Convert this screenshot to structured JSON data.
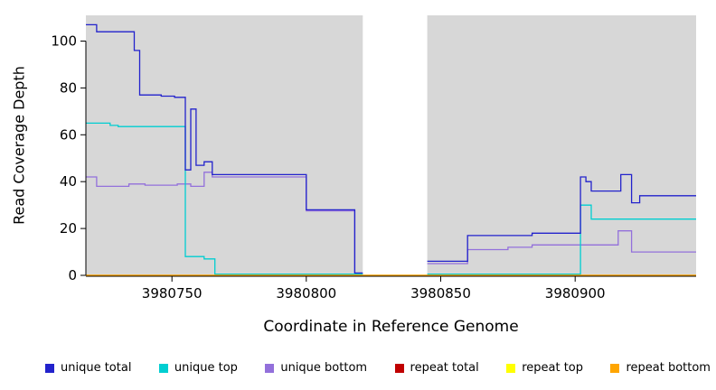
{
  "chart_data": {
    "type": "line",
    "title": "",
    "xlabel": "Coordinate in Reference Genome",
    "ylabel": "Read Coverage Depth",
    "xlim": [
      3980718,
      3980945
    ],
    "ylim": [
      0,
      111
    ],
    "x_ticks": [
      3980750,
      3980800,
      3980850,
      3980900
    ],
    "y_ticks": [
      0,
      20,
      40,
      60,
      80,
      100
    ],
    "grid": false,
    "legend_position": "bottom",
    "plot_background": "#ffffff",
    "coverage_region_color": "#d7d7d7",
    "coverage_regions": [
      [
        3980718,
        3980821
      ],
      [
        3980845,
        3980945
      ]
    ],
    "gap_region": [
      3980821,
      3980845
    ],
    "series": [
      {
        "name": "unique total",
        "color": "#2222cc",
        "z": 3,
        "points": [
          [
            3980718,
            107
          ],
          [
            3980722,
            104
          ],
          [
            3980736,
            96
          ],
          [
            3980738,
            77
          ],
          [
            3980746,
            76.5
          ],
          [
            3980751,
            76
          ],
          [
            3980755,
            45
          ],
          [
            3980757,
            71
          ],
          [
            3980759,
            47
          ],
          [
            3980762,
            48.5
          ],
          [
            3980765,
            43
          ],
          [
            3980800,
            28
          ],
          [
            3980818,
            1
          ],
          [
            3980821,
            null
          ],
          [
            3980845,
            6
          ],
          [
            3980860,
            17
          ],
          [
            3980884,
            18
          ],
          [
            3980902,
            42
          ],
          [
            3980904,
            40
          ],
          [
            3980906,
            36
          ],
          [
            3980917,
            43
          ],
          [
            3980921,
            31
          ],
          [
            3980924,
            34
          ],
          [
            3980945,
            34
          ]
        ]
      },
      {
        "name": "unique top",
        "color": "#00ced1",
        "z": 2,
        "points": [
          [
            3980718,
            65
          ],
          [
            3980727,
            64
          ],
          [
            3980730,
            63.5
          ],
          [
            3980755,
            8
          ],
          [
            3980762,
            7
          ],
          [
            3980766,
            0.5
          ],
          [
            3980821,
            null
          ],
          [
            3980845,
            0.5
          ],
          [
            3980902,
            30
          ],
          [
            3980906,
            24
          ],
          [
            3980945,
            24
          ]
        ]
      },
      {
        "name": "unique bottom",
        "color": "#9370db",
        "z": 1,
        "points": [
          [
            3980718,
            42
          ],
          [
            3980722,
            38
          ],
          [
            3980734,
            39
          ],
          [
            3980740,
            38.5
          ],
          [
            3980752,
            39
          ],
          [
            3980757,
            38
          ],
          [
            3980762,
            44
          ],
          [
            3980765,
            42
          ],
          [
            3980800,
            27.5
          ],
          [
            3980818,
            0.5
          ],
          [
            3980821,
            null
          ],
          [
            3980845,
            5
          ],
          [
            3980860,
            11
          ],
          [
            3980875,
            12
          ],
          [
            3980884,
            13
          ],
          [
            3980916,
            19
          ],
          [
            3980921,
            10
          ],
          [
            3980945,
            10
          ]
        ]
      },
      {
        "name": "repeat total",
        "color": "#c00000",
        "z": 4,
        "points": [
          [
            3980718,
            0
          ],
          [
            3980945,
            0
          ]
        ]
      },
      {
        "name": "repeat top",
        "color": "#ffff00",
        "z": 5,
        "points": [
          [
            3980718,
            0
          ],
          [
            3980945,
            0
          ]
        ]
      },
      {
        "name": "repeat bottom",
        "color": "#ffa500",
        "z": 6,
        "points": [
          [
            3980718,
            0
          ],
          [
            3980945,
            0
          ]
        ]
      }
    ]
  }
}
